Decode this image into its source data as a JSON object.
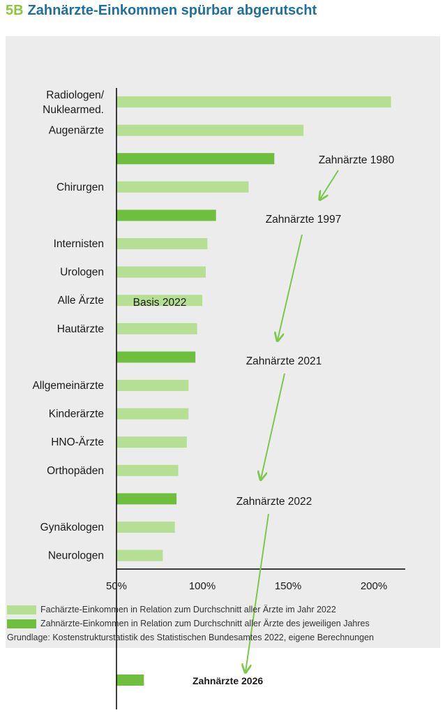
{
  "header": {
    "number": "5B",
    "title": "Zahnärzte-Einkommen spürbar abgerutscht"
  },
  "colors": {
    "light": "#b5df93",
    "dark": "#6fbf3f",
    "arrow": "#7cc84a",
    "title_blue": "#1f6f9f",
    "title_green": "#8cc63f"
  },
  "chart_data": {
    "type": "bar",
    "orientation": "horizontal",
    "x_ticks": [
      "50%",
      "100%",
      "150%",
      "200%"
    ],
    "xlim": [
      50,
      220
    ],
    "rows": [
      {
        "label": [
          "Radiologen/",
          "Nuklearmed."
        ],
        "value": 210,
        "kind": "light"
      },
      {
        "label": [
          "Augenärzte"
        ],
        "value": 159,
        "kind": "light"
      },
      {
        "label": [],
        "value": 142,
        "kind": "dark"
      },
      {
        "label": [
          "Chirurgen"
        ],
        "value": 127,
        "kind": "light"
      },
      {
        "label": [],
        "value": 108,
        "kind": "dark"
      },
      {
        "label": [
          "Internisten"
        ],
        "value": 103,
        "kind": "light"
      },
      {
        "label": [
          "Urologen"
        ],
        "value": 102,
        "kind": "light"
      },
      {
        "label": [
          "Alle Ärzte"
        ],
        "value": 100,
        "kind": "light"
      },
      {
        "label": [
          "Hautärzte"
        ],
        "value": 97,
        "kind": "light"
      },
      {
        "label": [],
        "value": 96,
        "kind": "dark"
      },
      {
        "label": [
          "Allgemeinärzte"
        ],
        "value": 92,
        "kind": "light"
      },
      {
        "label": [
          "Kinderärzte"
        ],
        "value": 92,
        "kind": "light"
      },
      {
        "label": [
          "HNO-Ärzte"
        ],
        "value": 91,
        "kind": "light"
      },
      {
        "label": [
          "Orthopäden"
        ],
        "value": 86,
        "kind": "light"
      },
      {
        "label": [],
        "value": 85,
        "kind": "dark"
      },
      {
        "label": [
          "Gynäkologen"
        ],
        "value": 84,
        "kind": "light"
      },
      {
        "label": [
          "Neurologen"
        ],
        "value": 77,
        "kind": "light"
      }
    ],
    "annotations": [
      {
        "text": "Zahnärzte 1980",
        "row": 2
      },
      {
        "text": "Zahnärzte 1997",
        "row": 4
      },
      {
        "text": "Basis 2022",
        "row": 7
      },
      {
        "text": "Zahnärzte 2021",
        "row": 9
      },
      {
        "text": "Zahnärzte 2022",
        "row": 14
      }
    ],
    "extra_bar": {
      "label": "Zahnärzte 2026",
      "value": 66,
      "kind": "dark"
    },
    "legend": [
      {
        "kind": "light",
        "text": "Fachärzte-Einkommen in Relation zum Durchschnitt aller Ärzte im Jahr 2022"
      },
      {
        "kind": "dark",
        "text": "Zahnärzte-Einkommen in Relation zum Durchschnitt aller Ärzte des jeweiligen Jahres"
      }
    ],
    "source": "Grundlage: Kostenstrukturstatistik des Statistischen Bundesamtes 2022, eigene Berechnungen"
  }
}
